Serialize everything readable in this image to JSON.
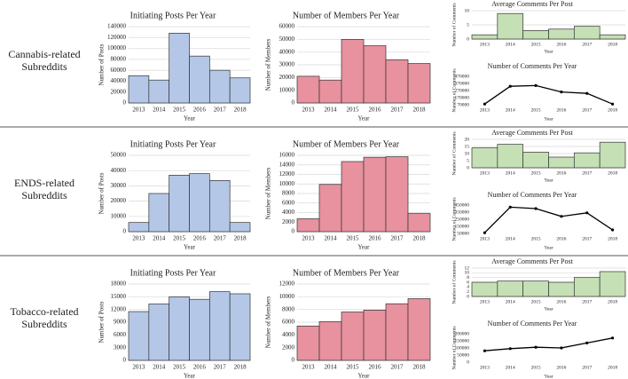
{
  "row_labels": [
    [
      "Cannabis-related",
      "Subreddits"
    ],
    [
      "ENDS-related",
      "Subreddits"
    ],
    [
      "Tobacco-related",
      "Subreddits"
    ]
  ],
  "chart_data": [
    {
      "type": "bar",
      "title": "Initiating Posts Per Year",
      "x_label": "Year",
      "y_label": "Number of Posts",
      "categories": [
        "2013",
        "2014",
        "2015",
        "2016",
        "2017",
        "2018"
      ],
      "values": [
        50000,
        42000,
        128000,
        86000,
        60000,
        46000
      ],
      "color": "#b4c7e7",
      "ylim": [
        0,
        140000
      ],
      "yticks": [
        0,
        20000,
        40000,
        60000,
        80000,
        100000,
        120000,
        140000
      ],
      "grid": true
    },
    {
      "type": "bar",
      "title": "Number of Members Per Year",
      "x_label": "Year",
      "y_label": "Number of Members",
      "categories": [
        "2013",
        "2014",
        "2015",
        "2016",
        "2017",
        "2018"
      ],
      "values": [
        21000,
        18000,
        50000,
        45000,
        34000,
        31000
      ],
      "color": "#e8919f",
      "ylim": [
        0,
        60000
      ],
      "yticks": [
        0,
        10000,
        20000,
        30000,
        40000,
        50000,
        60000
      ],
      "grid": true
    },
    {
      "type": "bar",
      "title": "Average Comments Per Post",
      "x_label": "Year",
      "y_label": "Number of Comments",
      "categories": [
        "2013",
        "2014",
        "2015",
        "2016",
        "2017",
        "2018"
      ],
      "values": [
        1.5,
        9,
        3,
        3.5,
        4.5,
        1.5
      ],
      "color": "#c5e0b4",
      "ylim": [
        0,
        10
      ],
      "yticks": [
        0,
        5,
        10
      ],
      "grid": true
    },
    {
      "type": "line",
      "title": "Number of Comments Per Year",
      "x_label": "Year",
      "y_label": "Number of Comments",
      "categories": [
        "2013",
        "2014",
        "2015",
        "2016",
        "2017",
        "2018"
      ],
      "values": [
        80000,
        330000,
        340000,
        250000,
        230000,
        80000
      ],
      "color": "#000000",
      "ylim": [
        70000,
        470000
      ],
      "yticks": [
        70000,
        170000,
        270000,
        370000,
        470000
      ],
      "grid": false
    },
    {
      "type": "bar",
      "title": "Initiating Posts Per Year",
      "x_label": "Year",
      "y_label": "Number of Posts",
      "categories": [
        "2013",
        "2014",
        "2015",
        "2016",
        "2017",
        "2018"
      ],
      "values": [
        6000,
        25000,
        37000,
        38000,
        33500,
        6000
      ],
      "color": "#b4c7e7",
      "ylim": [
        0,
        50000
      ],
      "yticks": [
        0,
        10000,
        20000,
        30000,
        40000,
        50000
      ],
      "grid": true
    },
    {
      "type": "bar",
      "title": "Number of Members Per Year",
      "x_label": "Year",
      "y_label": "Number of Members",
      "categories": [
        "2013",
        "2014",
        "2015",
        "2016",
        "2017",
        "2018"
      ],
      "values": [
        2700,
        9900,
        14700,
        15600,
        15700,
        3800
      ],
      "color": "#e8919f",
      "ylim": [
        0,
        16000
      ],
      "yticks": [
        0,
        2000,
        4000,
        6000,
        8000,
        10000,
        12000,
        14000,
        16000
      ],
      "grid": true
    },
    {
      "type": "bar",
      "title": "Average Comments Per Post",
      "x_label": "Year",
      "y_label": "Number of Comments",
      "categories": [
        "2013",
        "2014",
        "2015",
        "2016",
        "2017",
        "2018"
      ],
      "values": [
        14,
        16.5,
        11,
        7.5,
        10.5,
        18
      ],
      "color": "#c5e0b4",
      "ylim": [
        0,
        20
      ],
      "yticks": [
        0,
        5,
        10,
        15,
        20
      ],
      "grid": true
    },
    {
      "type": "line",
      "title": "Number of Comments Per Year",
      "x_label": "Year",
      "y_label": "Number of Comments",
      "categories": [
        "2013",
        "2014",
        "2015",
        "2016",
        "2017",
        "2018"
      ],
      "values": [
        60000,
        420000,
        400000,
        290000,
        340000,
        100000
      ],
      "color": "#000000",
      "ylim": [
        50000,
        450000
      ],
      "yticks": [
        50000,
        150000,
        250000,
        350000,
        450000
      ],
      "grid": false
    },
    {
      "type": "bar",
      "title": "Initiating Posts Per Year",
      "x_label": "Year",
      "y_label": "Number of Posts",
      "categories": [
        "2013",
        "2014",
        "2015",
        "2016",
        "2017",
        "2018"
      ],
      "values": [
        11500,
        13300,
        15000,
        14400,
        16200,
        15700
      ],
      "color": "#b4c7e7",
      "ylim": [
        0,
        18000
      ],
      "yticks": [
        0,
        3000,
        6000,
        9000,
        12000,
        15000,
        18000
      ],
      "grid": true
    },
    {
      "type": "bar",
      "title": "Number of Members Per Year",
      "x_label": "Year",
      "y_label": "Number of Members",
      "categories": [
        "2013",
        "2014",
        "2015",
        "2016",
        "2017",
        "2018"
      ],
      "values": [
        5400,
        6100,
        7600,
        7900,
        8900,
        9700
      ],
      "color": "#e8919f",
      "ylim": [
        0,
        12000
      ],
      "yticks": [
        0,
        2000,
        4000,
        6000,
        8000,
        10000,
        12000
      ],
      "grid": true
    },
    {
      "type": "bar",
      "title": "Average Comments Per Post",
      "x_label": "Year",
      "y_label": "Number of Comments",
      "categories": [
        "2013",
        "2014",
        "2015",
        "2016",
        "2017",
        "2018"
      ],
      "values": [
        6,
        6.5,
        6.5,
        6,
        8,
        10.5
      ],
      "color": "#c5e0b4",
      "ylim": [
        0,
        12
      ],
      "yticks": [
        0,
        2,
        4,
        6,
        8,
        10,
        12
      ],
      "grid": true
    },
    {
      "type": "line",
      "title": "Number of Comments Per Year",
      "x_label": "Year",
      "y_label": "Number of Comments",
      "categories": [
        "2013",
        "2014",
        "2015",
        "2016",
        "2017",
        "2018"
      ],
      "values": [
        80000,
        95000,
        105000,
        100000,
        135000,
        170000
      ],
      "color": "#000000",
      "ylim": [
        0,
        200000
      ],
      "yticks": [
        0,
        50000,
        100000,
        150000,
        200000
      ],
      "grid": false
    }
  ]
}
